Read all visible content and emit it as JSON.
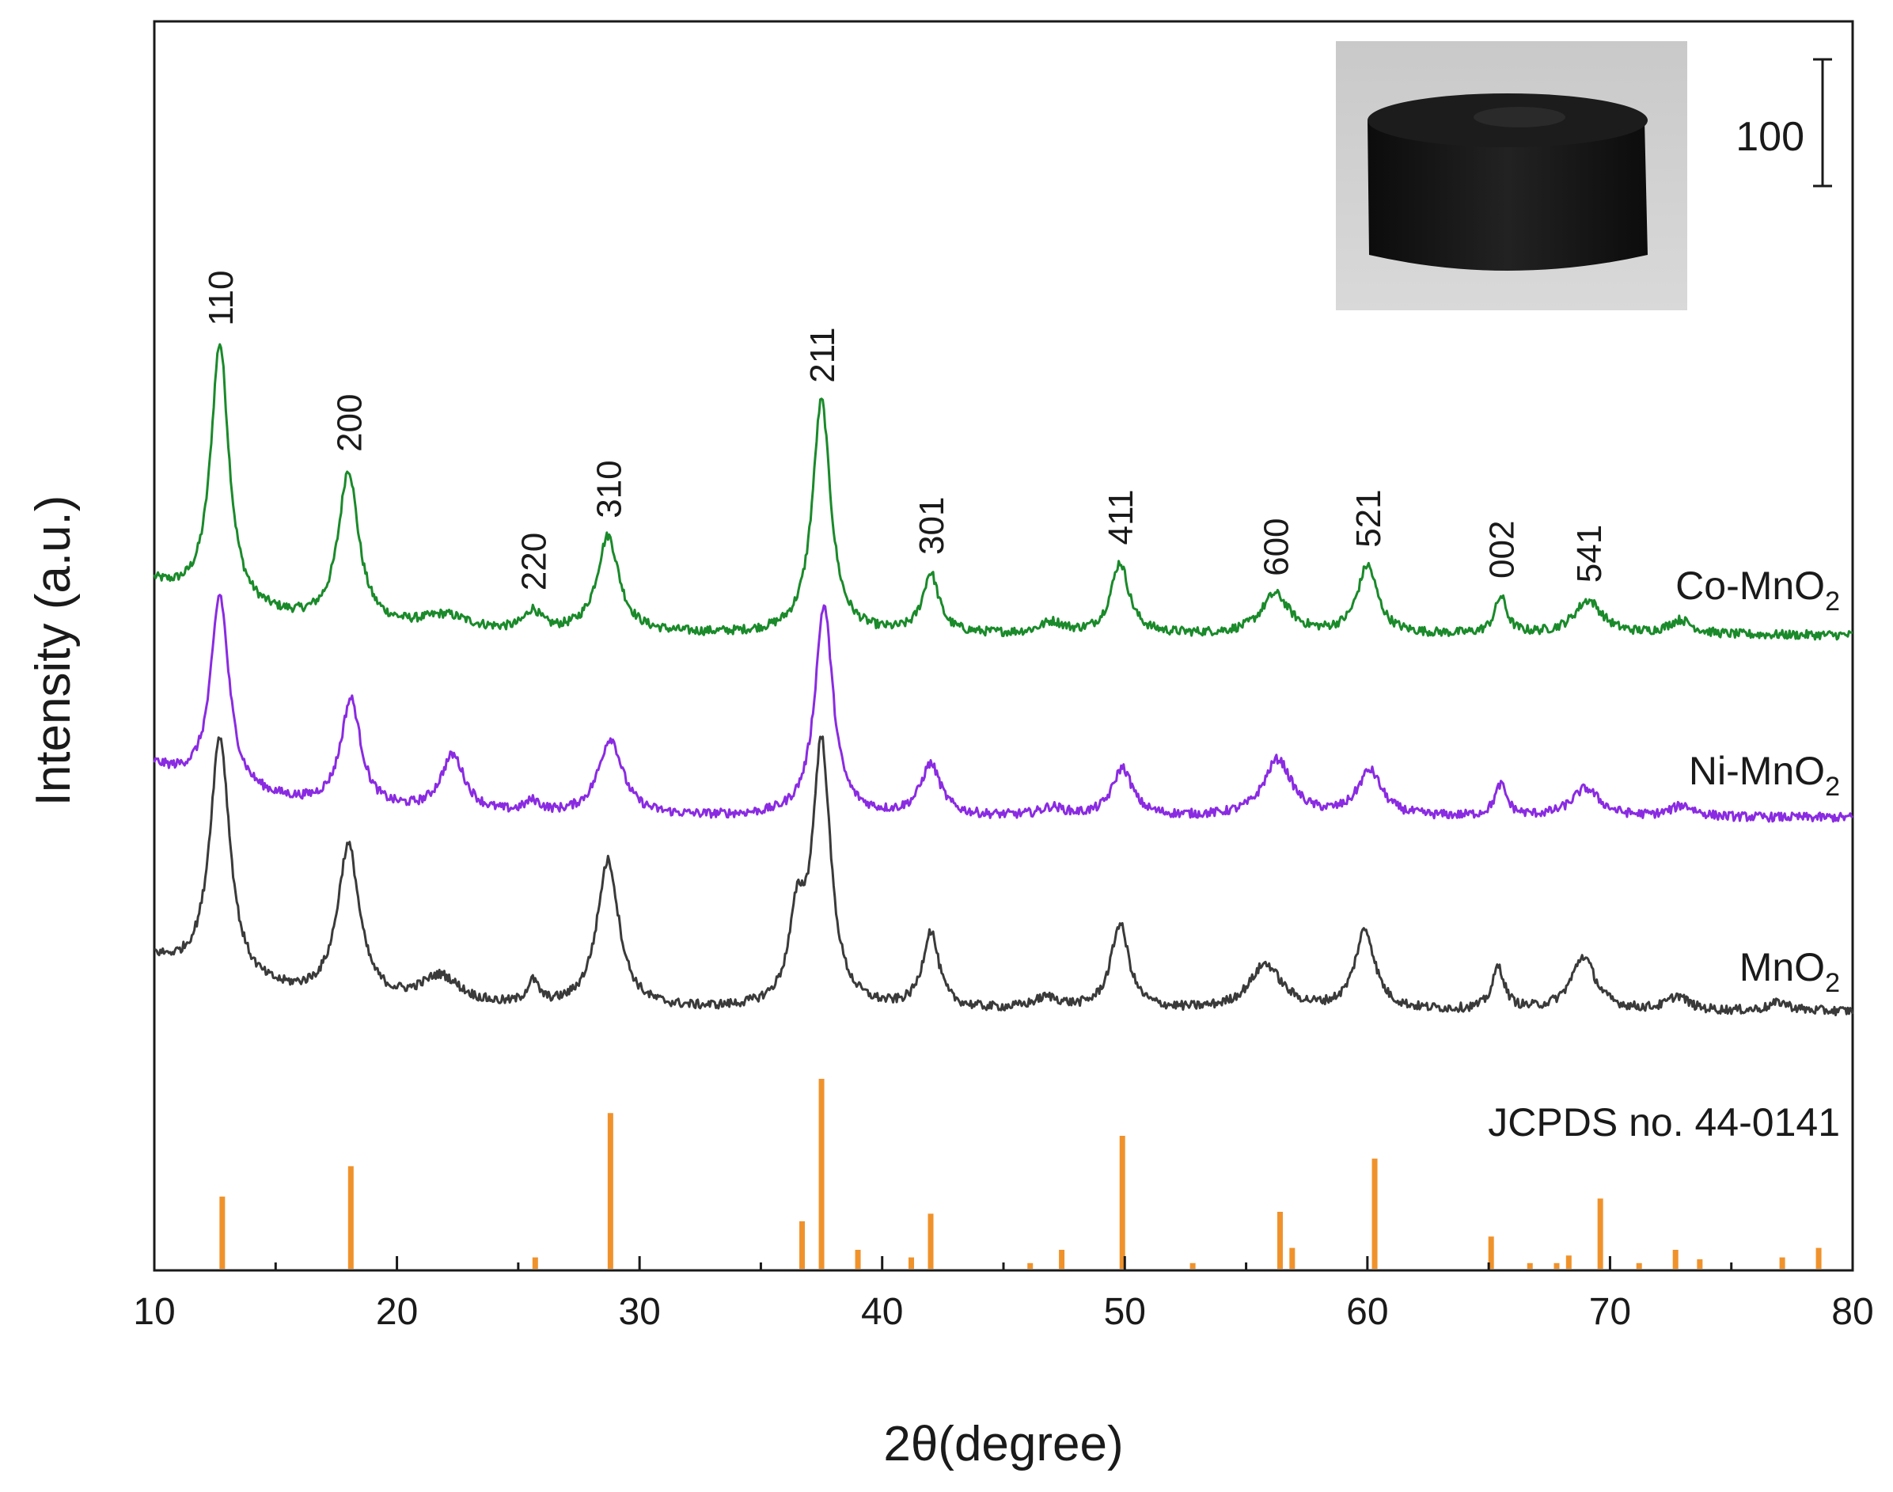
{
  "chart_data": {
    "type": "line",
    "title": "",
    "xlabel": "2θ(degree)",
    "ylabel": "Intensity (a.u.)",
    "xlim": [
      10,
      80
    ],
    "xticks": [
      10,
      20,
      30,
      40,
      50,
      60,
      70,
      80
    ],
    "xtick_labels": [
      "10",
      "20",
      "30",
      "40",
      "50",
      "60",
      "70",
      "80"
    ],
    "grid": false,
    "series": [
      {
        "name": "Co-MnO2",
        "label_main": "Co-MnO",
        "label_sub": "2",
        "color": "#1a8a2a",
        "baseline": 1.0,
        "peaks": [
          [
            12.7,
            4.6,
            0.45
          ],
          [
            18.0,
            2.7,
            0.5
          ],
          [
            22.0,
            0.25,
            1.2
          ],
          [
            25.6,
            0.35,
            0.4
          ],
          [
            28.7,
            1.7,
            0.55
          ],
          [
            37.5,
            4.1,
            0.45
          ],
          [
            42.0,
            1.05,
            0.4
          ],
          [
            47.0,
            0.2,
            0.6
          ],
          [
            49.8,
            1.25,
            0.45
          ],
          [
            56.2,
            0.7,
            0.7
          ],
          [
            60.0,
            1.2,
            0.5
          ],
          [
            65.5,
            0.65,
            0.3
          ],
          [
            69.1,
            0.6,
            0.7
          ],
          [
            72.9,
            0.25,
            0.6
          ]
        ],
        "noise": 0.08,
        "offset": 6.6
      },
      {
        "name": "Ni-MnO2",
        "label_main": "Ni-MnO",
        "label_sub": "2",
        "color": "#8a2be2",
        "baseline": 1.0,
        "peaks": [
          [
            12.7,
            3.4,
            0.45
          ],
          [
            18.1,
            1.9,
            0.5
          ],
          [
            22.3,
            1.0,
            0.6
          ],
          [
            25.6,
            0.2,
            0.4
          ],
          [
            28.8,
            1.35,
            0.6
          ],
          [
            37.6,
            3.7,
            0.45
          ],
          [
            42.0,
            0.9,
            0.5
          ],
          [
            47.0,
            0.15,
            0.6
          ],
          [
            49.9,
            0.85,
            0.5
          ],
          [
            56.3,
            1.0,
            0.7
          ],
          [
            60.1,
            0.8,
            0.6
          ],
          [
            65.5,
            0.55,
            0.3
          ],
          [
            69.0,
            0.5,
            0.7
          ],
          [
            73.0,
            0.2,
            0.6
          ]
        ],
        "noise": 0.08,
        "offset": 3.4
      },
      {
        "name": "MnO2",
        "label_main": "MnO",
        "label_sub": "2",
        "color": "#3a3a3a",
        "baseline": 1.0,
        "peaks": [
          [
            12.7,
            4.3,
            0.5
          ],
          [
            18.0,
            2.7,
            0.55
          ],
          [
            21.8,
            0.5,
            1.0
          ],
          [
            25.6,
            0.4,
            0.3
          ],
          [
            28.7,
            2.6,
            0.55
          ],
          [
            36.5,
            1.4,
            0.4
          ],
          [
            37.5,
            4.6,
            0.45
          ],
          [
            42.0,
            1.35,
            0.4
          ],
          [
            46.8,
            0.2,
            0.7
          ],
          [
            49.8,
            1.5,
            0.45
          ],
          [
            55.8,
            0.8,
            0.8
          ],
          [
            59.9,
            1.4,
            0.5
          ],
          [
            65.4,
            0.75,
            0.3
          ],
          [
            68.9,
            0.95,
            0.6
          ],
          [
            72.8,
            0.25,
            0.5
          ],
          [
            77.0,
            0.15,
            0.5
          ]
        ],
        "noise": 0.08,
        "offset": 0.0
      }
    ],
    "reference": {
      "name": "JCPDS no. 44-0141",
      "color": "#f0922b",
      "lines": [
        [
          12.8,
          0.38
        ],
        [
          18.1,
          0.54
        ],
        [
          25.7,
          0.06
        ],
        [
          28.8,
          0.82
        ],
        [
          36.7,
          0.25
        ],
        [
          37.5,
          1.0
        ],
        [
          39.0,
          0.1
        ],
        [
          41.2,
          0.06
        ],
        [
          42.0,
          0.29
        ],
        [
          46.1,
          0.03
        ],
        [
          47.4,
          0.1
        ],
        [
          49.9,
          0.7
        ],
        [
          52.8,
          0.03
        ],
        [
          56.4,
          0.3
        ],
        [
          56.9,
          0.11
        ],
        [
          60.3,
          0.58
        ],
        [
          65.1,
          0.17
        ],
        [
          66.7,
          0.03
        ],
        [
          67.8,
          0.03
        ],
        [
          68.3,
          0.07
        ],
        [
          69.6,
          0.37
        ],
        [
          71.2,
          0.03
        ],
        [
          72.7,
          0.1
        ],
        [
          73.7,
          0.05
        ],
        [
          77.1,
          0.06
        ],
        [
          78.6,
          0.11
        ]
      ]
    },
    "peak_annotations": [
      {
        "label": "110",
        "x": 12.7
      },
      {
        "label": "200",
        "x": 18.0
      },
      {
        "label": "220",
        "x": 25.6
      },
      {
        "label": "310",
        "x": 28.7
      },
      {
        "label": "211",
        "x": 37.5
      },
      {
        "label": "301",
        "x": 42.0
      },
      {
        "label": "411",
        "x": 49.8
      },
      {
        "label": "600",
        "x": 56.2
      },
      {
        "label": "521",
        "x": 60.0
      },
      {
        "label": "002",
        "x": 65.5
      },
      {
        "label": "541",
        "x": 69.1
      }
    ],
    "inset": {
      "description_name": "sample-photo",
      "scale_bar_label": "100"
    }
  }
}
